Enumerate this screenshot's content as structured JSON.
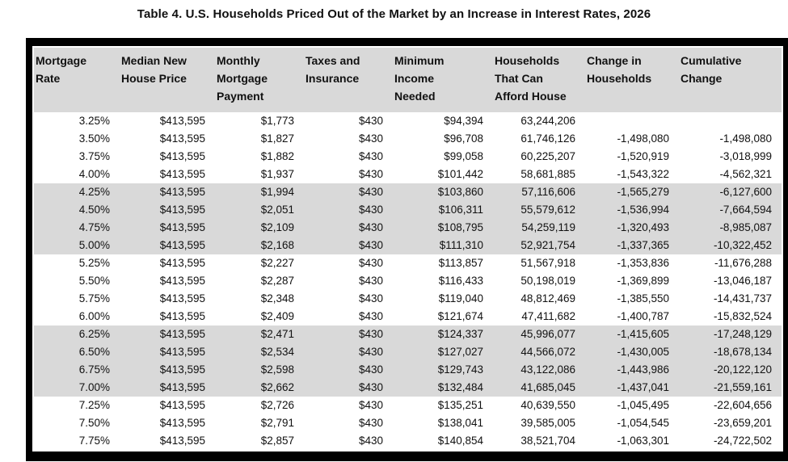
{
  "title": "Table 4. U.S. Households Priced Out of the Market by an Increase in Interest Rates, 2026",
  "colors": {
    "band_shade": "#d9d9d9",
    "header_shade": "#d9d9d9",
    "border": "#000000",
    "text": "#111111"
  },
  "table": {
    "column_keys": [
      "mortgage-rate",
      "median-new-house-price",
      "monthly-mortgage-payment",
      "taxes-and-insurance",
      "minimum-income-needed",
      "households-that-can-afford-house",
      "change-in-households",
      "cumulative-change"
    ],
    "headers": [
      "Mortgage\nRate",
      "Median New\nHouse Price",
      "Monthly\nMortgage\nPayment",
      "Taxes and\nInsurance",
      "Minimum\nIncome\nNeeded",
      "Households\nThat Can\nAfford House",
      "Change in\nHouseholds",
      "Cumulative\nChange"
    ],
    "rows": [
      [
        "3.25%",
        "$413,595",
        "$1,773",
        "$430",
        "$94,394",
        "63,244,206",
        "",
        ""
      ],
      [
        "3.50%",
        "$413,595",
        "$1,827",
        "$430",
        "$96,708",
        "61,746,126",
        "-1,498,080",
        "-1,498,080"
      ],
      [
        "3.75%",
        "$413,595",
        "$1,882",
        "$430",
        "$99,058",
        "60,225,207",
        "-1,520,919",
        "-3,018,999"
      ],
      [
        "4.00%",
        "$413,595",
        "$1,937",
        "$430",
        "$101,442",
        "58,681,885",
        "-1,543,322",
        "-4,562,321"
      ],
      [
        "4.25%",
        "$413,595",
        "$1,994",
        "$430",
        "$103,860",
        "57,116,606",
        "-1,565,279",
        "-6,127,600"
      ],
      [
        "4.50%",
        "$413,595",
        "$2,051",
        "$430",
        "$106,311",
        "55,579,612",
        "-1,536,994",
        "-7,664,594"
      ],
      [
        "4.75%",
        "$413,595",
        "$2,109",
        "$430",
        "$108,795",
        "54,259,119",
        "-1,320,493",
        "-8,985,087"
      ],
      [
        "5.00%",
        "$413,595",
        "$2,168",
        "$430",
        "$111,310",
        "52,921,754",
        "-1,337,365",
        "-10,322,452"
      ],
      [
        "5.25%",
        "$413,595",
        "$2,227",
        "$430",
        "$113,857",
        "51,567,918",
        "-1,353,836",
        "-11,676,288"
      ],
      [
        "5.50%",
        "$413,595",
        "$2,287",
        "$430",
        "$116,433",
        "50,198,019",
        "-1,369,899",
        "-13,046,187"
      ],
      [
        "5.75%",
        "$413,595",
        "$2,348",
        "$430",
        "$119,040",
        "48,812,469",
        "-1,385,550",
        "-14,431,737"
      ],
      [
        "6.00%",
        "$413,595",
        "$2,409",
        "$430",
        "$121,674",
        "47,411,682",
        "-1,400,787",
        "-15,832,524"
      ],
      [
        "6.25%",
        "$413,595",
        "$2,471",
        "$430",
        "$124,337",
        "45,996,077",
        "-1,415,605",
        "-17,248,129"
      ],
      [
        "6.50%",
        "$413,595",
        "$2,534",
        "$430",
        "$127,027",
        "44,566,072",
        "-1,430,005",
        "-18,678,134"
      ],
      [
        "6.75%",
        "$413,595",
        "$2,598",
        "$430",
        "$129,743",
        "43,122,086",
        "-1,443,986",
        "-20,122,120"
      ],
      [
        "7.00%",
        "$413,595",
        "$2,662",
        "$430",
        "$132,484",
        "41,685,045",
        "-1,437,041",
        "-21,559,161"
      ],
      [
        "7.25%",
        "$413,595",
        "$2,726",
        "$430",
        "$135,251",
        "40,639,550",
        "-1,045,495",
        "-22,604,656"
      ],
      [
        "7.50%",
        "$413,595",
        "$2,791",
        "$430",
        "$138,041",
        "39,585,005",
        "-1,054,545",
        "-23,659,201"
      ],
      [
        "7.75%",
        "$413,595",
        "$2,857",
        "$430",
        "$140,854",
        "38,521,704",
        "-1,063,301",
        "-24,722,502"
      ]
    ]
  }
}
